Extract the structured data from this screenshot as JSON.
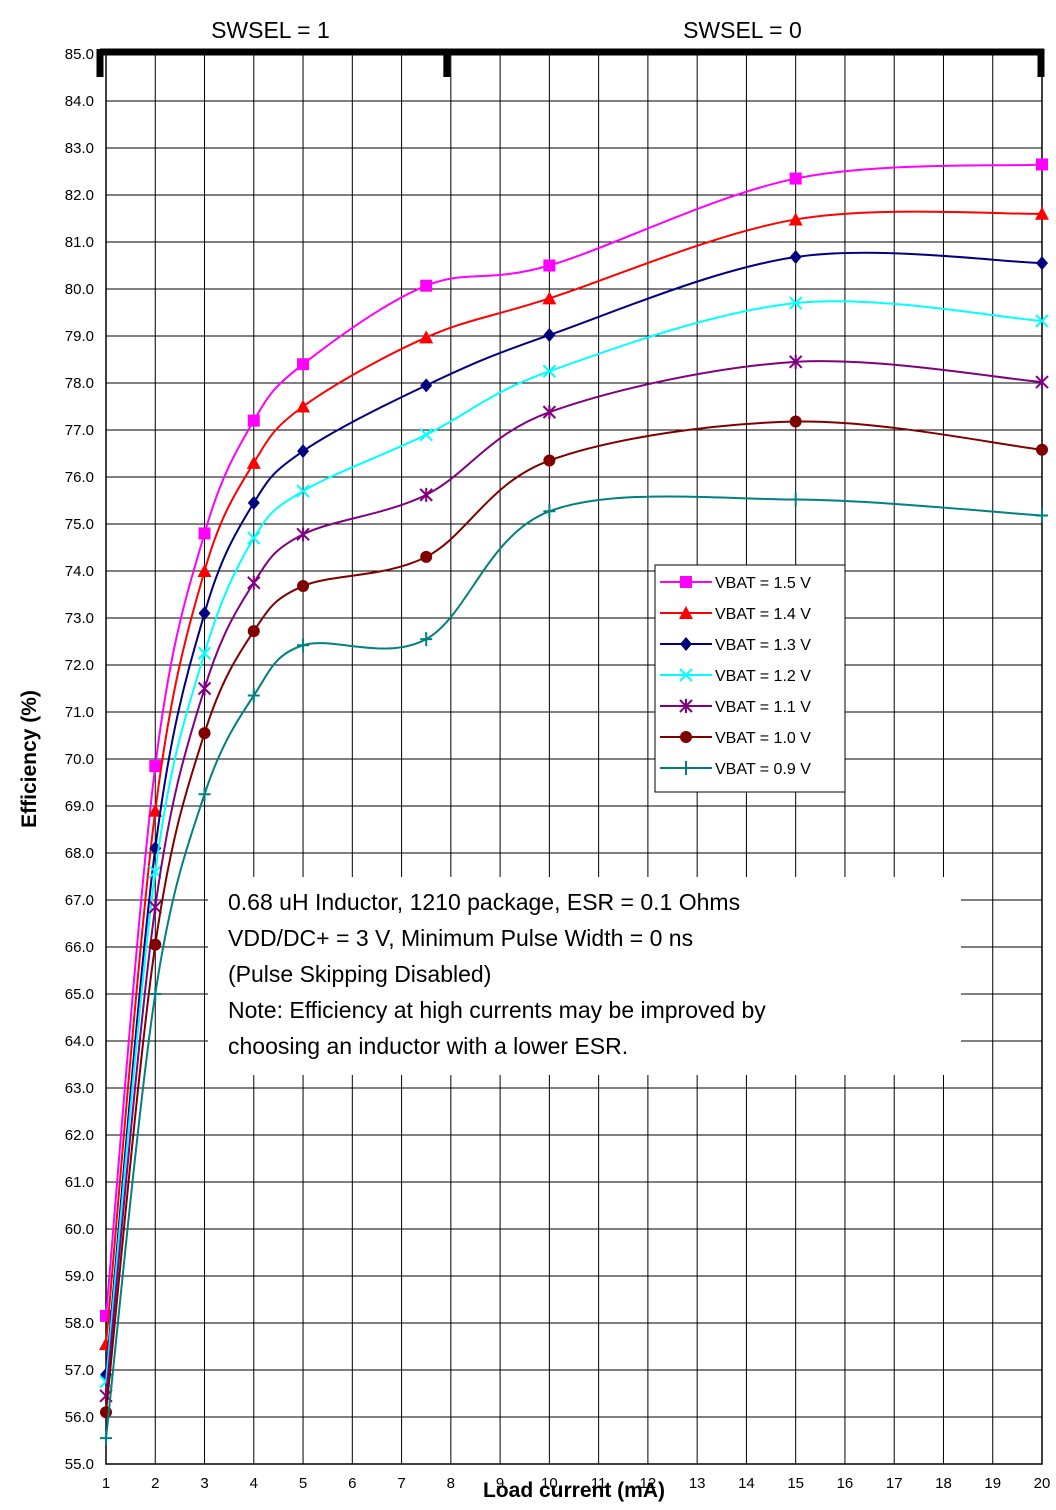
{
  "chart_data": {
    "type": "line",
    "xlabel": "Load current (mA)",
    "ylabel": "Efficiency (%)",
    "x_ticks": [
      1,
      2,
      3,
      4,
      5,
      6,
      7,
      8,
      9,
      10,
      11,
      12,
      13,
      14,
      15,
      16,
      17,
      18,
      19,
      20
    ],
    "ylim": [
      55.0,
      85.0
    ],
    "y_step": 1.0,
    "grid": true,
    "legend_position": "right-middle",
    "regions": [
      {
        "label": "SWSEL = 1",
        "x_start": 1,
        "x_end": 8
      },
      {
        "label": "SWSEL = 0",
        "x_start": 8,
        "x_end": 20
      }
    ],
    "annotation": [
      "0.68 uH Inductor, 1210 package, ESR = 0.1 Ohms",
      "VDD/DC+ = 3 V, Minimum Pulse Width = 0 ns",
      "(Pulse Skipping Disabled)",
      "Note: Efficiency at high currents may be improved by",
      "choosing an inductor with a lower ESR."
    ],
    "x": [
      1,
      2,
      3,
      4,
      5,
      7.5,
      10,
      15,
      20
    ],
    "series": [
      {
        "name": "VBAT = 1.5 V",
        "color": "#FF00FF",
        "marker": "square",
        "values": [
          58.15,
          69.85,
          74.8,
          77.2,
          78.4,
          80.07,
          80.5,
          82.35,
          82.65
        ]
      },
      {
        "name": "VBAT = 1.4 V",
        "color": "#FF0000",
        "marker": "triangle",
        "values": [
          57.55,
          68.9,
          74.0,
          76.3,
          77.5,
          78.97,
          79.8,
          81.48,
          81.6
        ]
      },
      {
        "name": "VBAT = 1.3 V",
        "color": "#000080",
        "marker": "diamond",
        "values": [
          56.9,
          68.1,
          73.1,
          75.45,
          76.55,
          77.95,
          79.02,
          80.68,
          80.55
        ]
      },
      {
        "name": "VBAT = 1.2 V",
        "color": "#00FFFF",
        "marker": "x",
        "values": [
          56.75,
          67.6,
          72.25,
          74.7,
          75.7,
          76.9,
          78.25,
          79.7,
          79.32
        ]
      },
      {
        "name": "VBAT = 1.1 V",
        "color": "#800080",
        "marker": "star",
        "values": [
          56.45,
          66.85,
          71.5,
          73.75,
          74.78,
          75.62,
          77.38,
          78.45,
          78.02
        ]
      },
      {
        "name": "VBAT = 1.0 V",
        "color": "#800000",
        "marker": "circle",
        "values": [
          56.1,
          66.05,
          70.55,
          72.72,
          73.68,
          74.3,
          76.35,
          77.18,
          76.58
        ]
      },
      {
        "name": "VBAT = 0.9 V",
        "color": "#008080",
        "marker": "plus",
        "values": [
          55.55,
          65.0,
          69.25,
          71.35,
          72.42,
          72.55,
          75.27,
          75.52,
          75.18
        ]
      }
    ]
  }
}
